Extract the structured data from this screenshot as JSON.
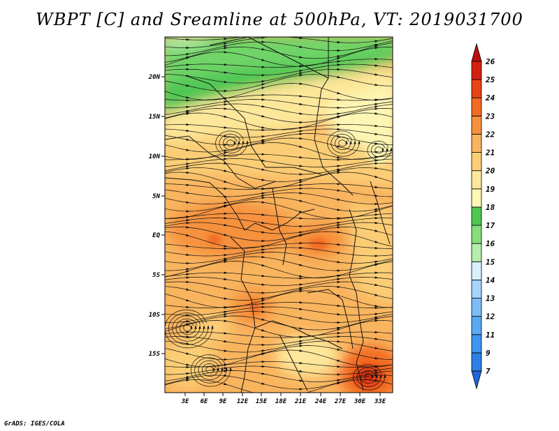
{
  "title": "WBPT [C] and Sreamline at 500hPa, VT: 2019031700",
  "credit": "GrADS: IGES/COLA",
  "map": {
    "lat_labels": [
      "20N",
      "15N",
      "10N",
      "5N",
      "EQ",
      "5S",
      "10S",
      "15S"
    ],
    "lon_labels": [
      "3E",
      "6E",
      "9E",
      "12E",
      "15E",
      "18E",
      "21E",
      "24E",
      "27E",
      "30E",
      "33E"
    ]
  },
  "colorbar": {
    "labels": [
      "7",
      "9",
      "11",
      "12",
      "13",
      "14",
      "15",
      "16",
      "17",
      "18",
      "19",
      "20",
      "21",
      "22",
      "23",
      "24",
      "25",
      "26"
    ],
    "colors": [
      "#1f66d9",
      "#2d7fe6",
      "#3d96f0",
      "#5aa9f5",
      "#7dbdf7",
      "#a6d4fa",
      "#d8f0fb",
      "#b4eeaa",
      "#86de7c",
      "#4ec652",
      "#fdf6b4",
      "#fde79a",
      "#fbce76",
      "#f9b45e",
      "#f6913e",
      "#f26b22",
      "#e84414",
      "#d42010",
      "#b8100c"
    ]
  }
}
